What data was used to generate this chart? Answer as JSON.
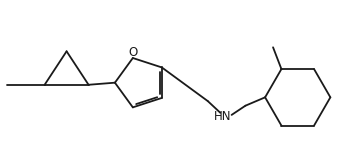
{
  "background": "#ffffff",
  "line_color": "#1a1a1a",
  "line_width": 1.3,
  "fig_width": 3.57,
  "fig_height": 1.57,
  "dpi": 100,
  "hn_label": "HN",
  "o_label": "O",
  "font_size": 8.5
}
